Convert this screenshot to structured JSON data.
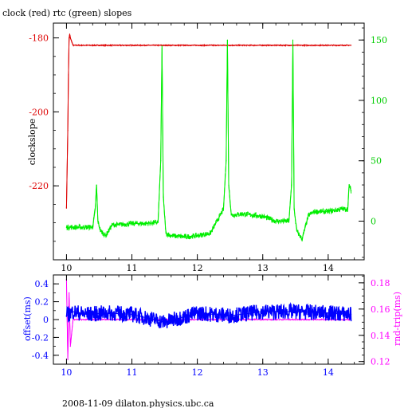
{
  "title": "clock (red) rtc (green) slopes",
  "footer": "2008-11-09  dilaton.physics.ubc.ca",
  "colors": {
    "clock": "#dd0000",
    "rtc": "#00ee00",
    "offset": "#0000ff",
    "rndtrip": "#ff00ff",
    "axis": "#000000"
  },
  "chart_data": [
    {
      "type": "line",
      "title": "clock (red) rtc (green) slopes",
      "xlabel": "",
      "ylabel": "clockslope",
      "y2label": "",
      "xlim": [
        9.8,
        14.55
      ],
      "ylim": [
        -240,
        -176
      ],
      "y2lim": [
        -32,
        164
      ],
      "xticks": [
        10,
        11,
        12,
        13,
        14
      ],
      "yticks": [
        -180,
        -200,
        -220
      ],
      "y2ticks": [
        0,
        50,
        100,
        150
      ],
      "series": [
        {
          "name": "clock",
          "axis": "left",
          "x": [
            10.0,
            10.02,
            10.03,
            10.04,
            10.05,
            10.06,
            10.08,
            10.1,
            10.15,
            10.3,
            10.6,
            11.0,
            11.5,
            12.0,
            12.5,
            13.0,
            13.5,
            14.0,
            14.35
          ],
          "y": [
            -226,
            -205,
            -190,
            -180,
            -179,
            -180,
            -181,
            -182,
            -182,
            -182,
            -182,
            -182,
            -182,
            -182,
            -182,
            -182,
            -182,
            -182,
            -182
          ]
        },
        {
          "name": "rtc",
          "axis": "right",
          "x": [
            10.0,
            10.1,
            10.3,
            10.4,
            10.44,
            10.46,
            10.48,
            10.52,
            10.6,
            10.7,
            10.8,
            11.0,
            11.2,
            11.4,
            11.44,
            11.46,
            11.48,
            11.52,
            11.6,
            11.8,
            12.0,
            12.2,
            12.4,
            12.44,
            12.46,
            12.48,
            12.52,
            12.7,
            13.0,
            13.2,
            13.4,
            13.44,
            13.46,
            13.48,
            13.52,
            13.6,
            13.7,
            13.8,
            14.0,
            14.2,
            14.3,
            14.32,
            14.35
          ],
          "y": [
            -5,
            -5,
            -5,
            -5,
            10,
            30,
            0,
            -8,
            -12,
            -3,
            -3,
            -2,
            -2,
            -1,
            50,
            145,
            20,
            -10,
            -12,
            -13,
            -12,
            -10,
            10,
            50,
            150,
            30,
            5,
            6,
            4,
            0,
            0,
            30,
            150,
            10,
            -8,
            -15,
            5,
            8,
            8,
            10,
            10,
            30,
            25
          ]
        }
      ]
    },
    {
      "type": "line",
      "title": "",
      "xlabel": "",
      "ylabel": "offset(ms)",
      "y2label": "rnd-trip(ms)",
      "xlim": [
        9.8,
        14.55
      ],
      "ylim": [
        -0.5,
        0.5
      ],
      "y2lim": [
        0.118,
        0.186
      ],
      "xticks": [
        10,
        11,
        12,
        13,
        14
      ],
      "yticks": [
        0.4,
        0.2,
        0,
        -0.2,
        -0.4
      ],
      "y2ticks": [
        0.18,
        0.16,
        0.14,
        0.12
      ],
      "series": [
        {
          "name": "offset",
          "axis": "left",
          "x": [
            10.0,
            10.02,
            10.04,
            10.06,
            10.1,
            10.3,
            10.6,
            11.0,
            11.5,
            12.0,
            12.5,
            13.0,
            13.5,
            14.0,
            14.35
          ],
          "y": [
            0.45,
            -0.45,
            0.3,
            -0.3,
            0.0,
            0.0,
            0.0,
            0.0,
            0.0,
            0.0,
            0.0,
            0.0,
            0.0,
            0.0,
            0.0
          ]
        },
        {
          "name": "rnd-trip",
          "axis": "right",
          "x": [
            10.0,
            10.1,
            10.3,
            10.6,
            11.0,
            11.5,
            12.0,
            12.5,
            13.0,
            13.5,
            14.0,
            14.35
          ],
          "y": [
            0.155,
            0.158,
            0.156,
            0.157,
            0.156,
            0.15,
            0.157,
            0.155,
            0.158,
            0.158,
            0.157,
            0.156
          ]
        }
      ]
    }
  ]
}
